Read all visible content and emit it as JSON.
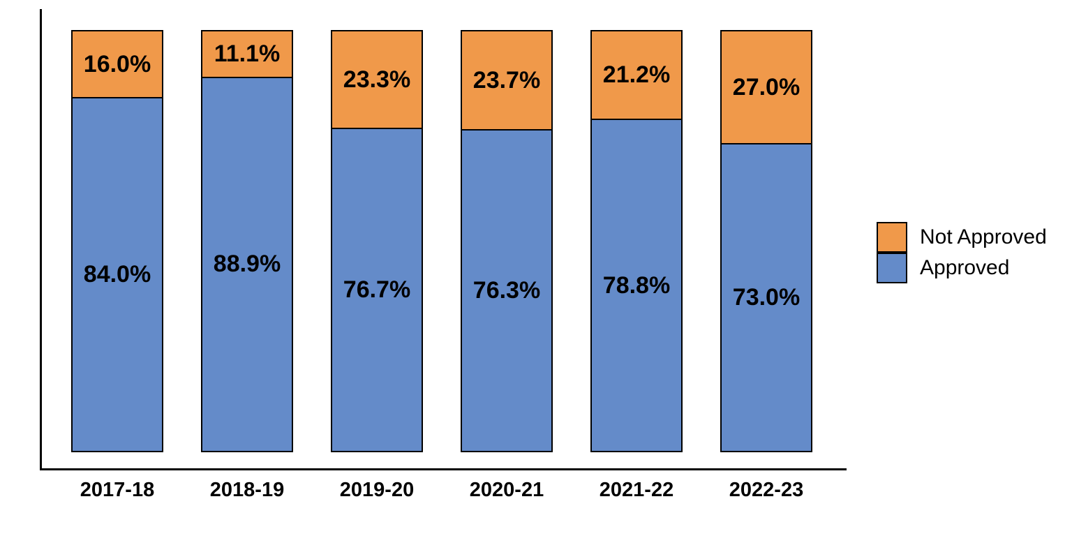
{
  "chart_data": {
    "type": "bar",
    "variant": "stacked-percent",
    "title": "",
    "xlabel": "",
    "ylabel": "",
    "ylim": [
      0,
      100
    ],
    "grid": false,
    "categories": [
      "2017-18",
      "2018-19",
      "2019-20",
      "2020-21",
      "2021-22",
      "2022-23"
    ],
    "series": [
      {
        "name": "Not Approved",
        "color": "#F0994A",
        "values": [
          16.0,
          11.1,
          23.3,
          23.7,
          21.2,
          27.0
        ],
        "labels": [
          "16.0%",
          "11.1%",
          "23.3%",
          "23.7%",
          "21.2%",
          "27.0%"
        ]
      },
      {
        "name": "Approved",
        "color": "#648BC9",
        "values": [
          84.0,
          88.9,
          76.7,
          76.3,
          78.8,
          73.0
        ],
        "labels": [
          "84.0%",
          "88.9%",
          "76.7%",
          "76.3%",
          "78.8%",
          "73.0%"
        ]
      }
    ],
    "legend": {
      "position": "right",
      "entries": [
        {
          "label": "Not Approved",
          "color": "#F0994A"
        },
        {
          "label": "Approved",
          "color": "#648BC9"
        }
      ]
    },
    "axis_color": "#000000",
    "bar_border_color": "#000000",
    "label_color": "#000000"
  }
}
